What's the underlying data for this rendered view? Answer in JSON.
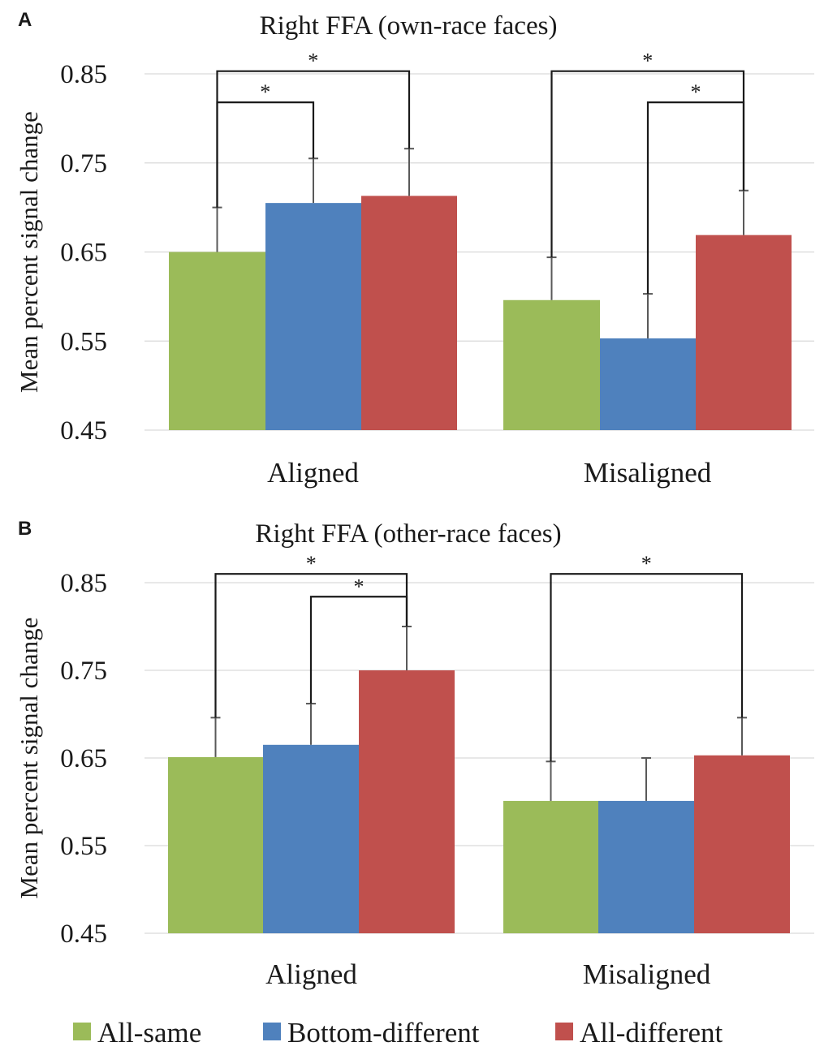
{
  "colors": {
    "All-same": "#9bbb59",
    "Bottom-different": "#4f81bd",
    "All-different": "#c0504d"
  },
  "legend": [
    {
      "label": "All-same",
      "color": "#9bbb59"
    },
    {
      "label": "Bottom-different",
      "color": "#4f81bd"
    },
    {
      "label": "All-different",
      "color": "#c0504d"
    }
  ],
  "chart_data": [
    {
      "panel": "A",
      "type": "bar",
      "title": "Right FFA (own-race faces)",
      "ylabel": "Mean percent signal change",
      "xlabel": "",
      "ylim": [
        0.45,
        0.85
      ],
      "yticks": [
        "0.45",
        "0.55",
        "0.65",
        "0.75",
        "0.85"
      ],
      "grid": true,
      "categories": [
        "Aligned",
        "Misaligned"
      ],
      "series": [
        {
          "name": "All-same",
          "values": [
            0.65,
            0.596
          ],
          "error": [
            0.05,
            0.048
          ]
        },
        {
          "name": "Bottom-different",
          "values": [
            0.705,
            0.553
          ],
          "error": [
            0.05,
            0.05
          ]
        },
        {
          "name": "All-different",
          "values": [
            0.713,
            0.669
          ],
          "error": [
            0.053,
            0.05
          ]
        }
      ],
      "significance": [
        {
          "group": 0,
          "from": 0,
          "to": 2,
          "y": 0.853,
          "label": "*"
        },
        {
          "group": 0,
          "from": 0,
          "to": 1,
          "y": 0.818,
          "label": "*"
        },
        {
          "group": 1,
          "from": 0,
          "to": 2,
          "y": 0.853,
          "label": "*"
        },
        {
          "group": 1,
          "from": 1,
          "to": 2,
          "y": 0.818,
          "label": "*"
        }
      ]
    },
    {
      "panel": "B",
      "type": "bar",
      "title": "Right FFA (other-race faces)",
      "ylabel": "Mean percent signal change",
      "xlabel": "",
      "ylim": [
        0.45,
        0.85
      ],
      "yticks": [
        "0.45",
        "0.55",
        "0.65",
        "0.75",
        "0.85"
      ],
      "grid": true,
      "categories": [
        "Aligned",
        "Misaligned"
      ],
      "series": [
        {
          "name": "All-same",
          "values": [
            0.651,
            0.601
          ],
          "error": [
            0.045,
            0.045
          ]
        },
        {
          "name": "Bottom-different",
          "values": [
            0.665,
            0.601
          ],
          "error": [
            0.047,
            0.049
          ]
        },
        {
          "name": "All-different",
          "values": [
            0.75,
            0.653
          ],
          "error": [
            0.05,
            0.043
          ]
        }
      ],
      "significance": [
        {
          "group": 0,
          "from": 0,
          "to": 2,
          "y": 0.86,
          "label": "*"
        },
        {
          "group": 0,
          "from": 1,
          "to": 2,
          "y": 0.834,
          "label": "*"
        },
        {
          "group": 1,
          "from": 0,
          "to": 2,
          "y": 0.86,
          "label": "*"
        }
      ]
    }
  ]
}
